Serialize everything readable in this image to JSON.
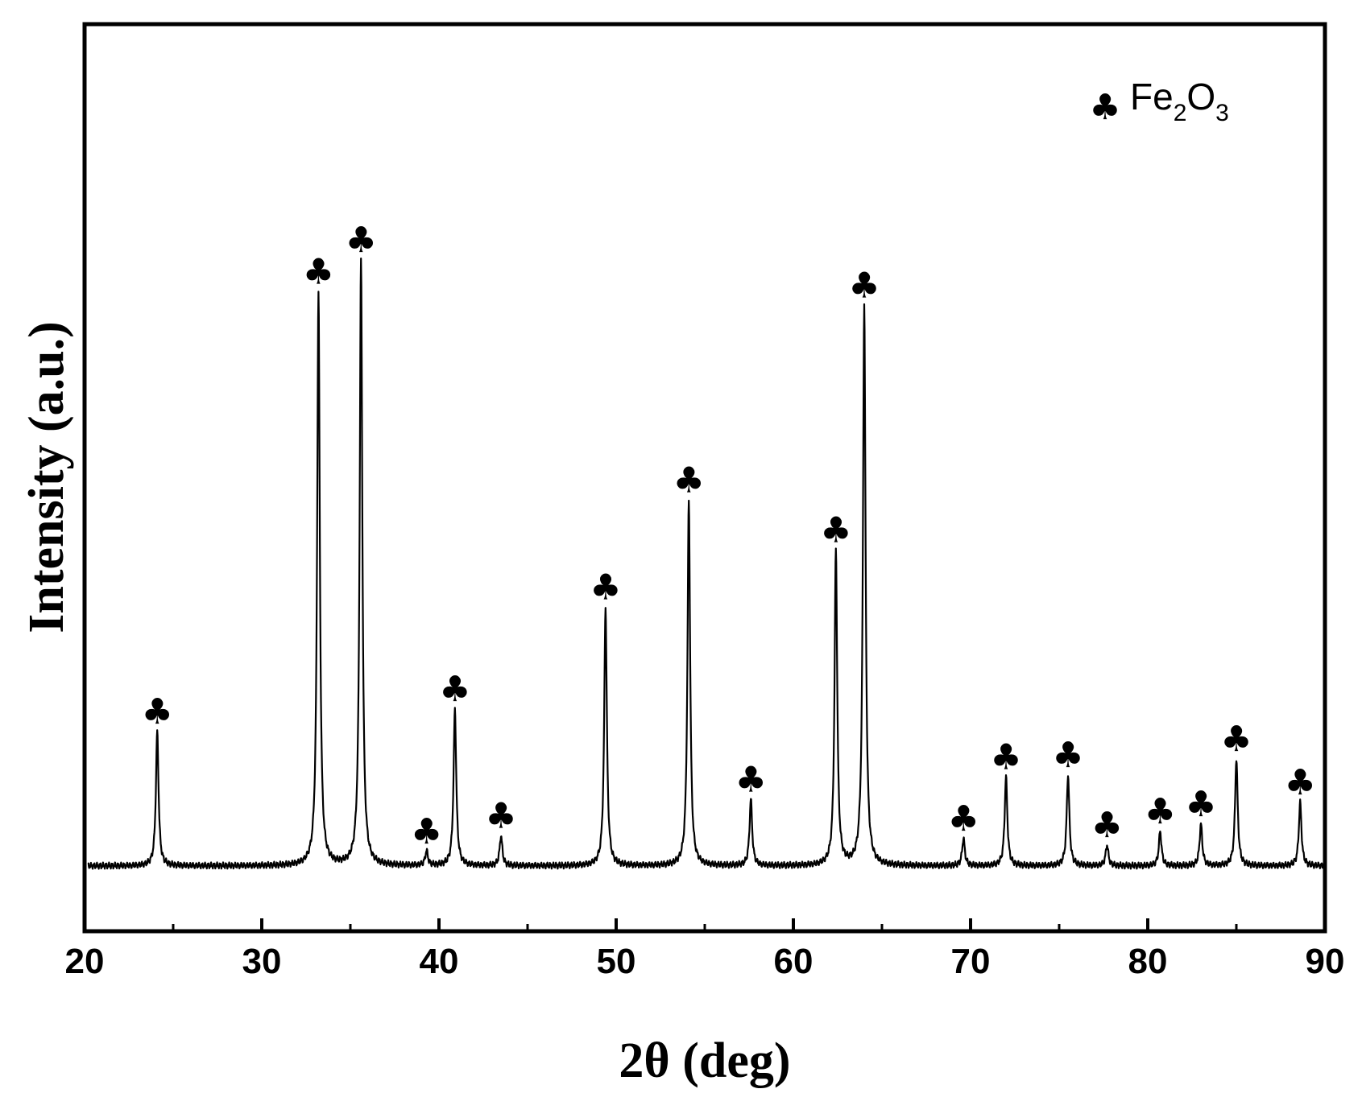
{
  "chart_data": {
    "type": "line",
    "xlabel": "2θ (deg)",
    "ylabel": "Intensity (a.u.)",
    "xlim": [
      20,
      90
    ],
    "ylim": [
      0,
      1000
    ],
    "x_ticks": [
      "20",
      "30",
      "40",
      "50",
      "60",
      "70",
      "80",
      "90"
    ],
    "y_ticks_shown": false,
    "grid": false,
    "baseline": 72,
    "legend": {
      "position": "top-right",
      "marker": "♣",
      "label_main": "Fe",
      "label_sub1": "2",
      "label_mid": "O",
      "label_sub2": "3"
    },
    "series": [
      {
        "name": "Fe2O3",
        "peaks": [
          {
            "x": 24.1,
            "y": 220
          },
          {
            "x": 33.2,
            "y": 705
          },
          {
            "x": 35.6,
            "y": 740
          },
          {
            "x": 39.3,
            "y": 88
          },
          {
            "x": 40.9,
            "y": 245
          },
          {
            "x": 43.5,
            "y": 105
          },
          {
            "x": 49.4,
            "y": 357
          },
          {
            "x": 54.1,
            "y": 475
          },
          {
            "x": 57.6,
            "y": 145
          },
          {
            "x": 62.4,
            "y": 420
          },
          {
            "x": 64.0,
            "y": 690
          },
          {
            "x": 69.6,
            "y": 102
          },
          {
            "x": 72.0,
            "y": 170
          },
          {
            "x": 75.5,
            "y": 172
          },
          {
            "x": 77.7,
            "y": 95
          },
          {
            "x": 80.7,
            "y": 110
          },
          {
            "x": 83.0,
            "y": 118
          },
          {
            "x": 85.0,
            "y": 190
          },
          {
            "x": 88.6,
            "y": 142
          }
        ]
      }
    ]
  }
}
